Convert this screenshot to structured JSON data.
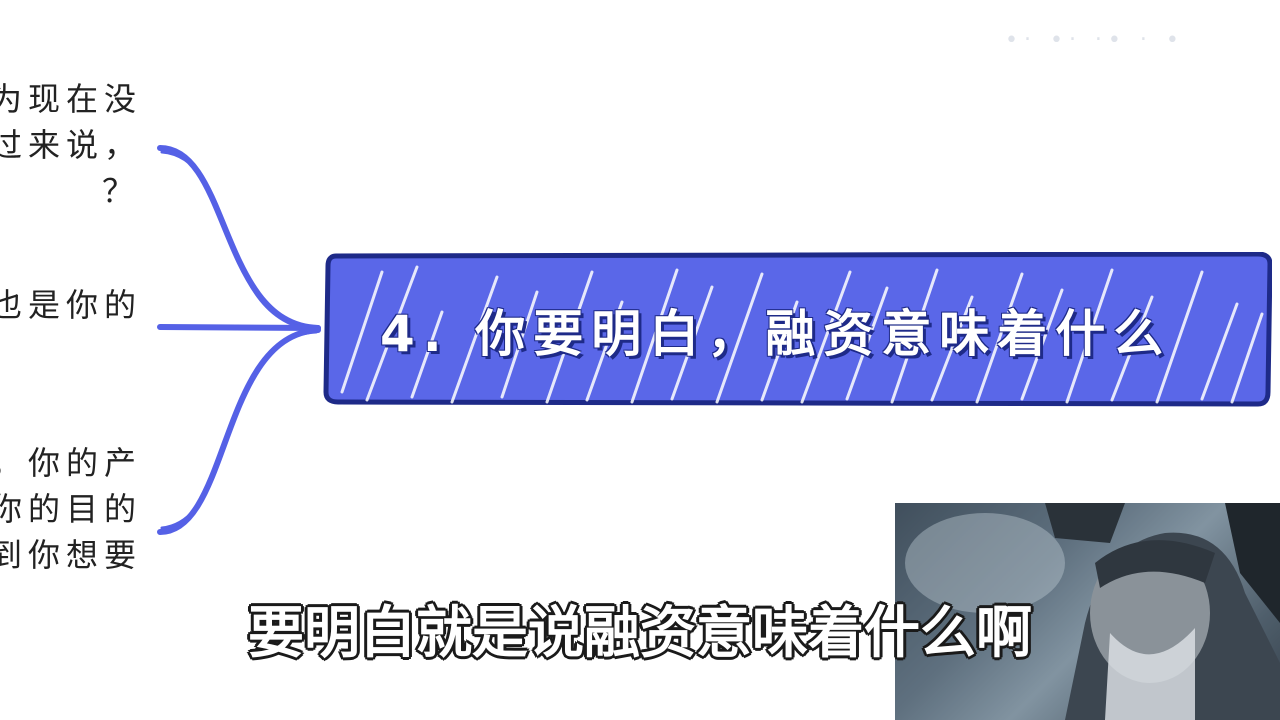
{
  "branches": [
    {
      "lines": [
        "为现在没",
        "过来说，",
        "？"
      ]
    },
    {
      "lines": [
        "也是你的"
      ]
    },
    {
      "lines": [
        "，你的产",
        "你的目的",
        "到你想要"
      ]
    }
  ],
  "main_node": {
    "title": "4. 你要明白，融资意味着什么",
    "fill_color": "#5a67e8",
    "border_color": "#1e2a88",
    "hatch_color": "#ffffff"
  },
  "connector_color": "#5561e6",
  "top_right_marks": "•‧ •‧ ‧• ‧ •",
  "subtitle": "要明白就是说融资意味着什么啊"
}
